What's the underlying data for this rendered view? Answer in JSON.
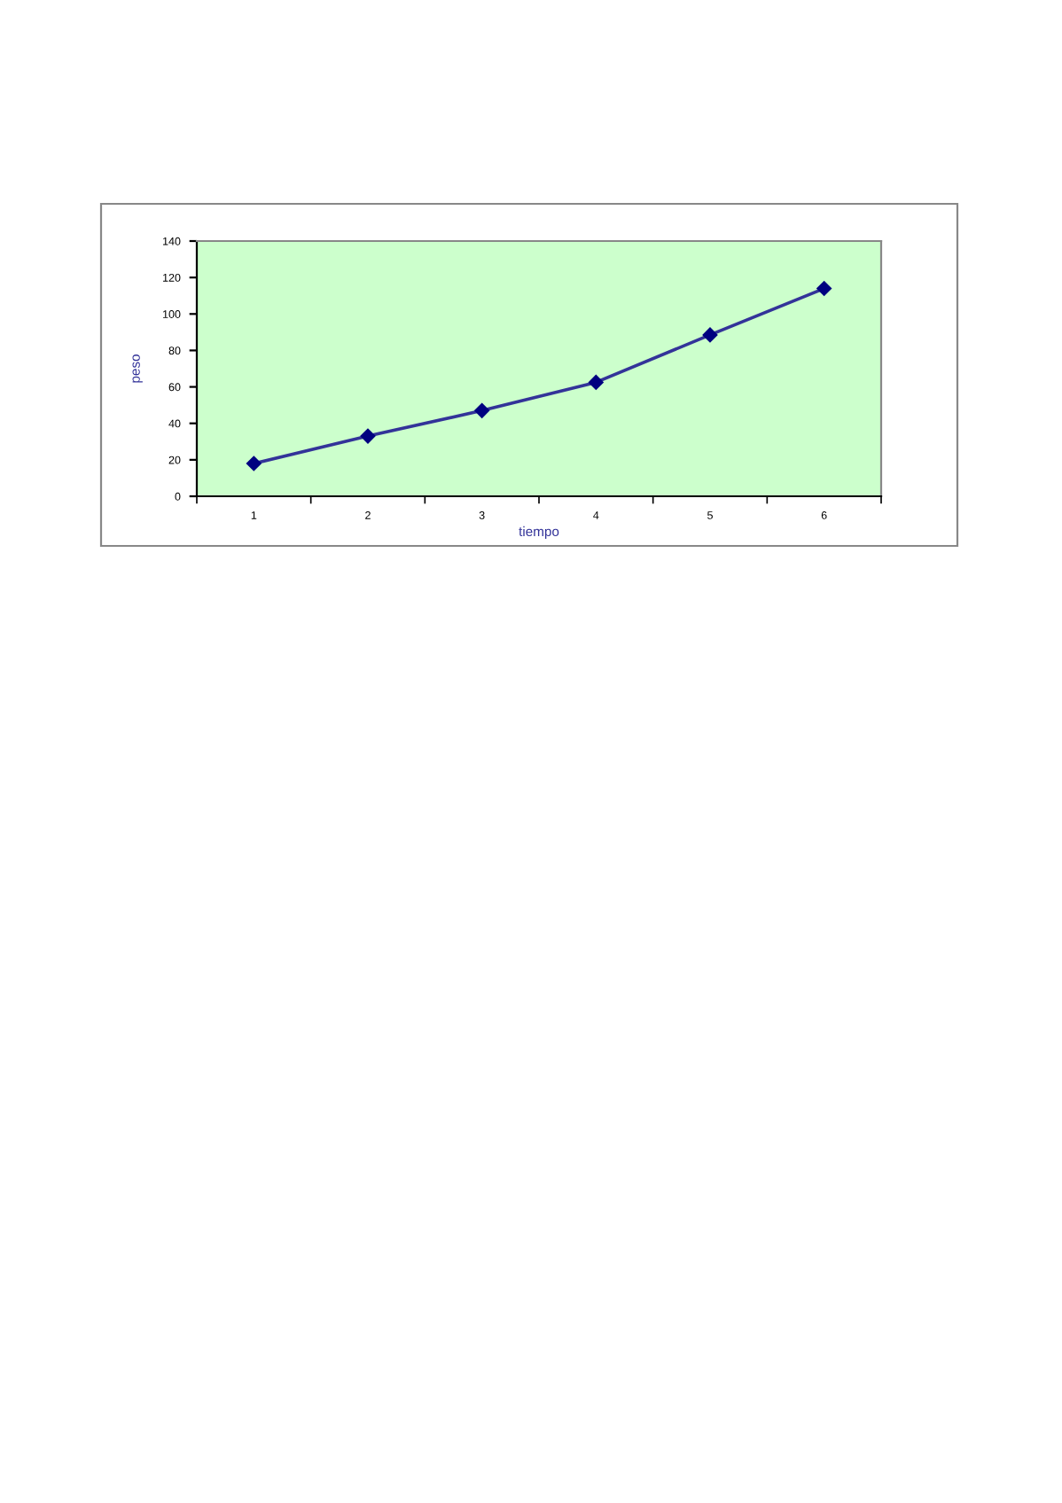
{
  "chart_data": {
    "type": "line",
    "xlabel": "tiempo",
    "ylabel": "peso",
    "categories": [
      "1",
      "2",
      "3",
      "4",
      "5",
      "6"
    ],
    "series": [
      {
        "color": "#333399",
        "values": [
          18,
          33,
          47,
          62.5,
          88.5,
          114
        ]
      }
    ],
    "ylim": [
      0,
      140
    ],
    "yticks": [
      0,
      20,
      40,
      60,
      80,
      100,
      120,
      140
    ],
    "marker": "diamond",
    "line_style": "solid",
    "grid": false,
    "legend": false
  }
}
